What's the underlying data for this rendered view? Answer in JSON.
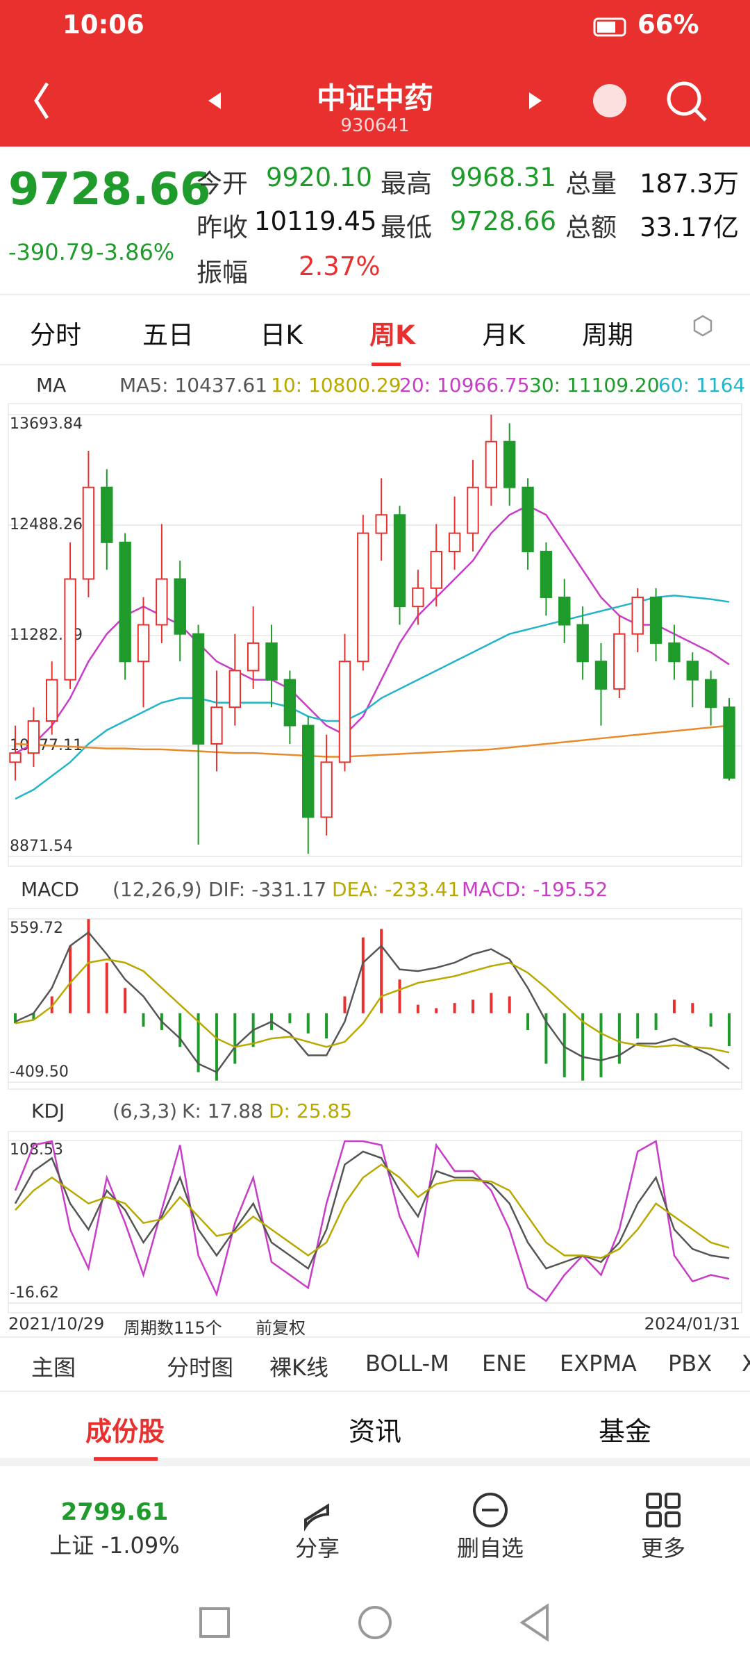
{
  "status_bar": {
    "time": "10:06",
    "battery": "66%"
  },
  "header": {
    "title": "中证中药",
    "code": "930641"
  },
  "quote": {
    "price": "9728.66",
    "change": "-390.79",
    "change_pct": "-3.86%",
    "fields": [
      {
        "label": "今开",
        "value": "9920.10"
      },
      {
        "label": "最高",
        "value": "9968.31"
      },
      {
        "label": "总量",
        "value": "187.3万"
      },
      {
        "label": "昨收",
        "value": "10119.45"
      },
      {
        "label": "最低",
        "value": "9728.66"
      },
      {
        "label": "总额",
        "value": "33.17亿"
      },
      {
        "label": "振幅",
        "value": "2.37%"
      }
    ]
  },
  "tabs": [
    "分时",
    "五日",
    "日K",
    "周K",
    "月K",
    "周期"
  ],
  "ma_legend": {
    "label": "MA",
    "items": [
      "MA5: 10437.61",
      "10: 10800.29",
      "20: 10966.75",
      "30: 11109.20",
      "60: 1164"
    ]
  },
  "price_chart": {
    "ylim": [
      8871.54,
      13693.84
    ],
    "yticks": [
      8871.54,
      10077.11,
      11282.69,
      12488.26,
      13693.84
    ],
    "up_color": "#e8312f",
    "down_color": "#1e9b2a",
    "open": [
      9900,
      10000,
      10350,
      10800,
      11900,
      12900,
      12300,
      11000,
      11400,
      11900,
      11300,
      10100,
      10500,
      10900,
      11200,
      10800,
      10300,
      9300,
      9900,
      11000,
      12400,
      12600,
      11600,
      11800,
      12200,
      12400,
      12900,
      13400,
      12900,
      12200,
      11700,
      11400,
      11000,
      10700,
      11300,
      11700,
      11200,
      11000,
      10800,
      10500
    ],
    "close": [
      10000,
      10350,
      10800,
      11900,
      12900,
      12300,
      11000,
      11400,
      11900,
      11300,
      10100,
      10500,
      10900,
      11200,
      10800,
      10300,
      9300,
      9900,
      11000,
      12400,
      12600,
      11600,
      11800,
      12200,
      12400,
      12900,
      13400,
      12900,
      12200,
      11700,
      11400,
      11000,
      10700,
      11300,
      11700,
      11200,
      11000,
      10800,
      10500,
      9728.66
    ],
    "high": [
      10300,
      10500,
      11000,
      12300,
      13300,
      13100,
      12400,
      11700,
      12500,
      12100,
      11400,
      10900,
      11300,
      11600,
      11400,
      10900,
      10400,
      10200,
      11300,
      12600,
      13000,
      12700,
      12000,
      12500,
      12800,
      13200,
      13693.84,
      13600,
      13000,
      12300,
      11900,
      11600,
      11200,
      11500,
      11800,
      11800,
      11400,
      11100,
      10900,
      10600
    ],
    "low": [
      9700,
      9850,
      10200,
      10700,
      11700,
      12000,
      10800,
      10500,
      11200,
      11000,
      9000,
      9800,
      10300,
      10700,
      10500,
      10100,
      8900,
      9100,
      9800,
      10900,
      12100,
      11400,
      11400,
      11600,
      12000,
      12200,
      12700,
      12700,
      12000,
      11500,
      11200,
      10800,
      10300,
      10600,
      11100,
      11000,
      10800,
      10500,
      10300,
      9700
    ],
    "lines": [
      {
        "color": "#c83cc8",
        "values": [
          10000,
          10100,
          10300,
          10600,
          11000,
          11300,
          11500,
          11600,
          11500,
          11400,
          11200,
          11000,
          10900,
          10800,
          10800,
          10700,
          10500,
          10300,
          10200,
          10400,
          10800,
          11200,
          11500,
          11700,
          11900,
          12100,
          12400,
          12600,
          12700,
          12600,
          12300,
          12000,
          11700,
          11500,
          11400,
          11400,
          11300,
          11200,
          11100,
          10966.75
        ]
      },
      {
        "color": "#22b4c8",
        "values": [
          9500,
          9600,
          9750,
          9900,
          10100,
          10250,
          10350,
          10450,
          10550,
          10600,
          10600,
          10550,
          10550,
          10550,
          10550,
          10500,
          10400,
          10350,
          10350,
          10450,
          10600,
          10700,
          10800,
          10900,
          11000,
          11100,
          11200,
          11300,
          11350,
          11400,
          11450,
          11500,
          11550,
          11600,
          11650,
          11700,
          11720,
          11700,
          11680,
          11650
        ]
      },
      {
        "color": "#e88a2a",
        "values": [
          10100,
          10090,
          10080,
          10070,
          10060,
          10050,
          10050,
          10040,
          10040,
          10030,
          10020,
          10010,
          10000,
          10000,
          9990,
          9980,
          9970,
          9960,
          9960,
          9970,
          9980,
          9990,
          10000,
          10010,
          10020,
          10030,
          10040,
          10060,
          10080,
          10100,
          10120,
          10140,
          10160,
          10180,
          10200,
          10220,
          10240,
          10260,
          10280,
          10300
        ]
      }
    ]
  },
  "macd_legend": {
    "label": "MACD",
    "params": "(12,26,9)",
    "dif": "DIF: -331.17",
    "dea": "DEA: -233.41",
    "macd": "MACD: -195.52"
  },
  "macd_chart": {
    "ylim": [
      -409.5,
      559.72
    ],
    "yticks": [
      {
        "value": -409.5,
        "label": "-409.50"
      },
      559.72
    ],
    "hist": [
      -60,
      -40,
      100,
      400,
      559,
      300,
      150,
      -80,
      -100,
      -200,
      -350,
      -400,
      -300,
      -200,
      -100,
      -60,
      -120,
      -150,
      100,
      450,
      500,
      200,
      50,
      30,
      60,
      80,
      120,
      100,
      -100,
      -300,
      -380,
      -400,
      -380,
      -300,
      -150,
      -100,
      80,
      60,
      -80,
      -195.52
    ],
    "dif": [
      -50,
      0,
      150,
      400,
      480,
      350,
      200,
      100,
      -50,
      -150,
      -300,
      -350,
      -200,
      -100,
      -50,
      -120,
      -250,
      -250,
      -50,
      300,
      400,
      260,
      250,
      270,
      300,
      350,
      380,
      320,
      150,
      -50,
      -200,
      -260,
      -280,
      -250,
      -180,
      -180,
      -150,
      -200,
      -250,
      -331.17
    ],
    "dea": [
      -60,
      -40,
      40,
      180,
      300,
      320,
      300,
      250,
      150,
      50,
      -50,
      -150,
      -200,
      -180,
      -150,
      -140,
      -170,
      -200,
      -170,
      -60,
      100,
      140,
      180,
      200,
      220,
      250,
      280,
      300,
      240,
      150,
      50,
      -50,
      -120,
      -170,
      -190,
      -200,
      -190,
      -200,
      -210,
      -233.41
    ],
    "dif_color": "#555555",
    "dea_color": "#b8a800"
  },
  "kdj_legend": {
    "label": "KDJ",
    "params": "(6,3,3)",
    "k": "K: 17.88",
    "d": "D: 25.85"
  },
  "kdj_chart": {
    "ylim": [
      -16.62,
      108.53
    ],
    "yticks": [
      -16.62,
      108.53
    ],
    "k": [
      60,
      85,
      95,
      60,
      40,
      70,
      55,
      30,
      50,
      80,
      40,
      20,
      40,
      60,
      30,
      20,
      10,
      40,
      90,
      100,
      95,
      70,
      50,
      85,
      80,
      80,
      75,
      60,
      30,
      10,
      15,
      20,
      15,
      30,
      60,
      80,
      40,
      25,
      20,
      17.88
    ],
    "d": [
      55,
      70,
      80,
      70,
      60,
      65,
      60,
      45,
      48,
      65,
      50,
      35,
      38,
      50,
      40,
      30,
      20,
      30,
      60,
      80,
      90,
      80,
      65,
      75,
      78,
      78,
      77,
      70,
      50,
      30,
      20,
      20,
      18,
      25,
      40,
      60,
      50,
      40,
      30,
      25.85
    ],
    "j": [
      70,
      105,
      108,
      40,
      10,
      80,
      45,
      5,
      55,
      105,
      20,
      -10,
      45,
      80,
      15,
      5,
      -5,
      60,
      108,
      108,
      105,
      50,
      20,
      105,
      85,
      85,
      70,
      40,
      -5,
      -15,
      5,
      20,
      5,
      40,
      100,
      108,
      20,
      0,
      5,
      2
    ],
    "k_color": "#555555",
    "d_color": "#b8a800",
    "j_color": "#c83cc8"
  },
  "footer_axis": {
    "start": "2021/10/29",
    "periods": "周期数115个",
    "adjust": "前复权",
    "end": "2024/01/31"
  },
  "indicators": [
    "主图",
    "分时图",
    "裸K线",
    "BOLL-M",
    "ENE",
    "EXPMA",
    "PBX",
    "X"
  ],
  "sections": [
    "成份股",
    "资讯",
    "基金"
  ],
  "bottom_nav": {
    "index_value": "2799.61",
    "index_change": "上证 -1.09%",
    "actions": [
      "分享",
      "删自选",
      "更多"
    ]
  }
}
